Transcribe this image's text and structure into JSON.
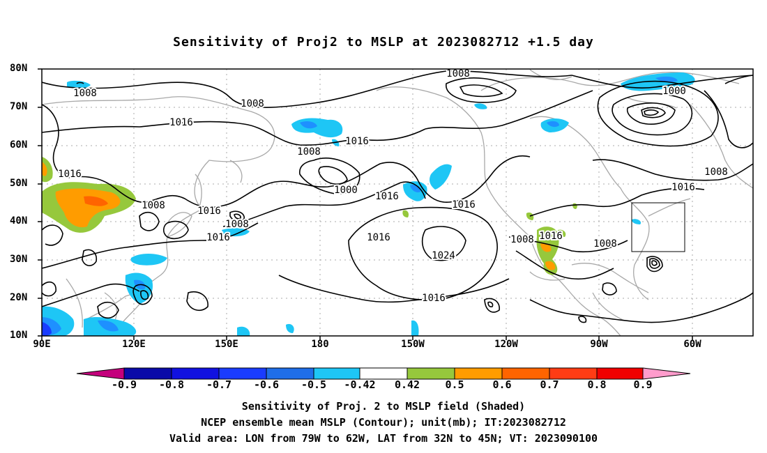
{
  "title": "Sensitivity of Proj2 to MSLP at 2023082712 +1.5 day",
  "lat_labels": [
    "80N",
    "70N",
    "60N",
    "50N",
    "40N",
    "30N",
    "20N",
    "10N"
  ],
  "lon_labels": [
    "90E",
    "120E",
    "150E",
    "180",
    "150W",
    "120W",
    "90W",
    "60W"
  ],
  "contour_labels": [
    "1008",
    "1008",
    "1008",
    "1000",
    "1016",
    "1016",
    "1016",
    "1008",
    "1000",
    "1016",
    "1016",
    "1016",
    "1016",
    "1008",
    "1016",
    "1024",
    "1016",
    "1008",
    "1016",
    "1008",
    "1016",
    "1008",
    "1008"
  ],
  "colorbar": {
    "labels": [
      "-0.9",
      "-0.8",
      "-0.7",
      "-0.6",
      "-0.5",
      "-0.42",
      "0.42",
      "0.5",
      "0.6",
      "0.7",
      "0.8",
      "0.9"
    ],
    "colors": [
      "#c4007c",
      "#0a0aa8",
      "#1111e0",
      "#1a3cff",
      "#1f6ee8",
      "#1e90ff",
      "#1ec6f5",
      "#ffffff",
      "#96c83c",
      "#ff9c00",
      "#ff6400",
      "#ff3c14",
      "#f00000",
      "#ff9ccc"
    ]
  },
  "captions": [
    "Sensitivity of Proj. 2 to MSLP field (Shaded)",
    "NCEP ensemble mean MSLP (Contour); unit(mb); IT:2023082712",
    "Valid area: LON from 79W to 62W, LAT from 32N to 45N; VT: 2023090100"
  ]
}
